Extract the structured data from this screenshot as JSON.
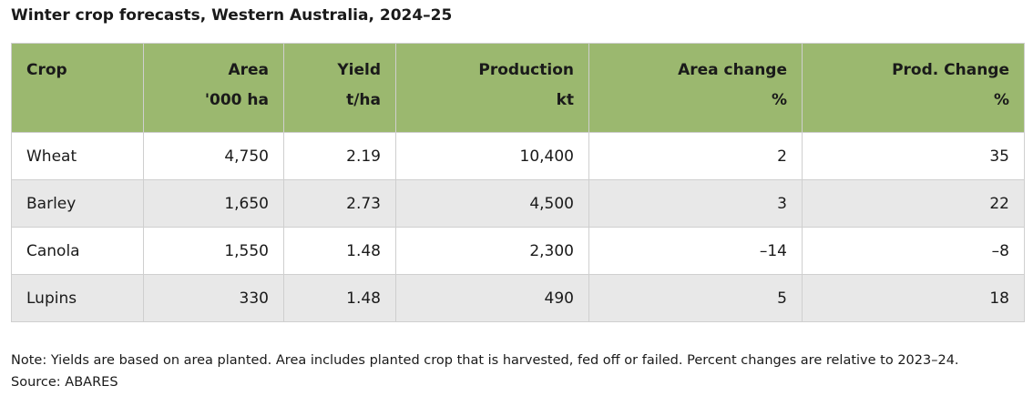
{
  "title": "Winter crop forecasts, Western Australia, 2024–25",
  "columns": [
    {
      "label": "Crop",
      "unit": ""
    },
    {
      "label": "Area",
      "unit": "'000 ha"
    },
    {
      "label": "Yield",
      "unit": "t/ha"
    },
    {
      "label": "Production",
      "unit": "kt"
    },
    {
      "label": "Area change",
      "unit": "%"
    },
    {
      "label": "Prod. Change",
      "unit": "%"
    }
  ],
  "rows": [
    {
      "crop": "Wheat",
      "area": "4,750",
      "yield": "2.19",
      "production": "10,400",
      "area_change": "2",
      "prod_change": "35"
    },
    {
      "crop": "Barley",
      "area": "1,650",
      "yield": "2.73",
      "production": "4,500",
      "area_change": "3",
      "prod_change": "22"
    },
    {
      "crop": "Canola",
      "area": "1,550",
      "yield": "1.48",
      "production": "2,300",
      "area_change": "–14",
      "prod_change": "–8"
    },
    {
      "crop": "Lupins",
      "area": "330",
      "yield": "1.48",
      "production": "490",
      "area_change": "5",
      "prod_change": "18"
    }
  ],
  "note": "Note: Yields are based on area planted. Area includes planted crop that is harvested, fed off or failed. Percent changes are relative to 2023–24.",
  "source": "Source: ABARES",
  "colors": {
    "header_bg": "#9bb86f",
    "alt_row_bg": "#e8e8e8",
    "border": "#cfcfcf"
  }
}
